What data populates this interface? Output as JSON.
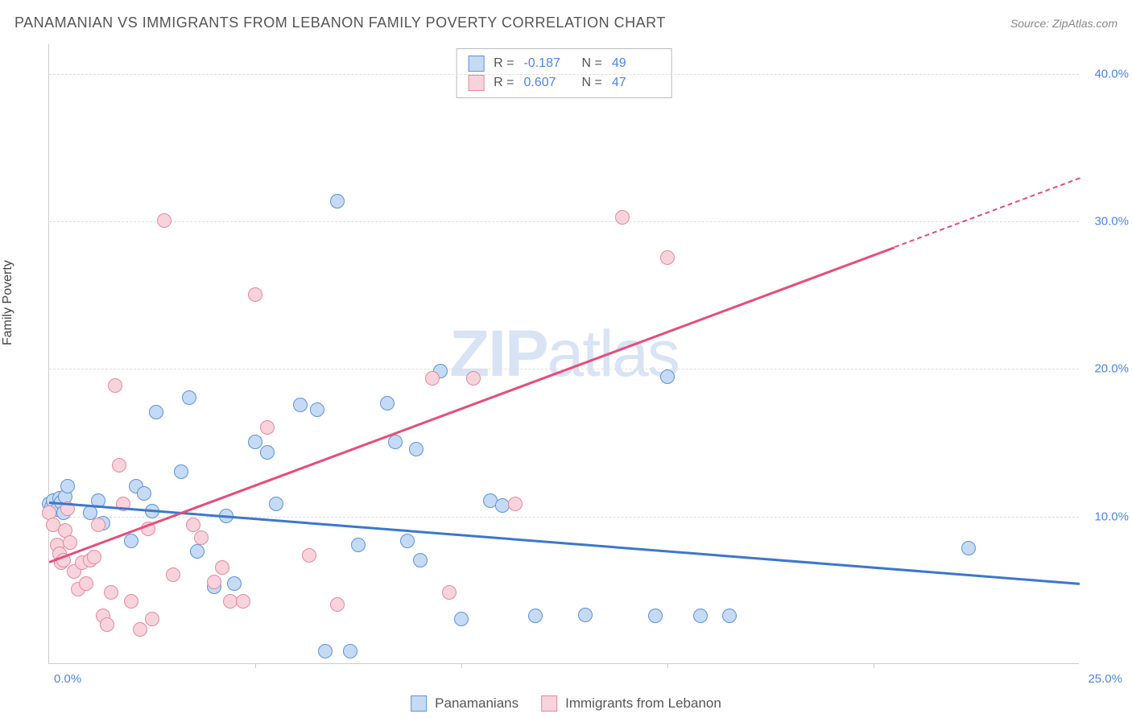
{
  "title": "PANAMANIAN VS IMMIGRANTS FROM LEBANON FAMILY POVERTY CORRELATION CHART",
  "source_prefix": "Source: ",
  "source": "ZipAtlas.com",
  "y_axis_label": "Family Poverty",
  "watermark_bold": "ZIP",
  "watermark_rest": "atlas",
  "chart": {
    "type": "scatter",
    "xlim": [
      0,
      25
    ],
    "ylim": [
      0,
      42
    ],
    "y_ticks": [
      10,
      20,
      30,
      40
    ],
    "y_tick_labels": [
      "10.0%",
      "20.0%",
      "30.0%",
      "40.0%"
    ],
    "x_ticks": [
      0,
      5,
      10,
      15,
      20,
      25
    ],
    "x_tick_label_left": "0.0%",
    "x_tick_label_right": "25.0%",
    "grid_color": "#dddddd",
    "axis_color": "#cccccc",
    "background_color": "#ffffff",
    "series": [
      {
        "name": "Panamanians",
        "fill": "#c5daf5",
        "stroke": "#5b94d6",
        "trend_color": "#3b78cc",
        "trend_x": [
          0,
          25
        ],
        "trend_y": [
          11.0,
          5.5
        ],
        "trend_dashed": false,
        "R": "-0.187",
        "N": "49",
        "points": [
          [
            0.0,
            10.8
          ],
          [
            0.05,
            10.6
          ],
          [
            0.1,
            11.0
          ],
          [
            0.2,
            10.4
          ],
          [
            0.25,
            11.2
          ],
          [
            0.3,
            10.9
          ],
          [
            0.35,
            10.2
          ],
          [
            0.4,
            11.3
          ],
          [
            0.45,
            12.0
          ],
          [
            1.0,
            10.2
          ],
          [
            1.2,
            11.0
          ],
          [
            1.3,
            9.5
          ],
          [
            2.0,
            8.3
          ],
          [
            2.1,
            12.0
          ],
          [
            2.3,
            11.5
          ],
          [
            2.5,
            10.3
          ],
          [
            2.6,
            17.0
          ],
          [
            3.2,
            13.0
          ],
          [
            3.4,
            18.0
          ],
          [
            3.6,
            7.6
          ],
          [
            4.0,
            5.2
          ],
          [
            4.3,
            10.0
          ],
          [
            4.5,
            5.4
          ],
          [
            5.0,
            15.0
          ],
          [
            5.3,
            14.3
          ],
          [
            5.5,
            10.8
          ],
          [
            6.1,
            17.5
          ],
          [
            6.5,
            17.2
          ],
          [
            6.7,
            0.8
          ],
          [
            7.0,
            31.3
          ],
          [
            7.3,
            0.8
          ],
          [
            7.5,
            8.0
          ],
          [
            8.2,
            17.6
          ],
          [
            8.4,
            15.0
          ],
          [
            8.7,
            8.3
          ],
          [
            8.9,
            14.5
          ],
          [
            9.0,
            7.0
          ],
          [
            9.5,
            19.8
          ],
          [
            10.0,
            3.0
          ],
          [
            10.7,
            11.0
          ],
          [
            11.0,
            10.7
          ],
          [
            11.8,
            3.2
          ],
          [
            13.0,
            3.3
          ],
          [
            14.7,
            3.2
          ],
          [
            15.8,
            3.2
          ],
          [
            16.5,
            3.2
          ],
          [
            15.0,
            19.4
          ],
          [
            22.3,
            7.8
          ]
        ]
      },
      {
        "name": "Immigrants from Lebanon",
        "fill": "#f8d3dc",
        "stroke": "#e887a1",
        "trend_color": "#e84c7a",
        "trend_x": [
          0,
          25
        ],
        "trend_y": [
          7.0,
          33.0
        ],
        "trend_dashed_after_x": 20.5,
        "R": "0.607",
        "N": "47",
        "points": [
          [
            0.0,
            10.2
          ],
          [
            0.1,
            9.4
          ],
          [
            0.2,
            8.0
          ],
          [
            0.25,
            7.4
          ],
          [
            0.3,
            6.8
          ],
          [
            0.35,
            7.0
          ],
          [
            0.4,
            9.0
          ],
          [
            0.45,
            10.5
          ],
          [
            0.5,
            8.2
          ],
          [
            0.6,
            6.2
          ],
          [
            0.7,
            5.0
          ],
          [
            0.8,
            6.8
          ],
          [
            0.9,
            5.4
          ],
          [
            1.0,
            7.0
          ],
          [
            1.1,
            7.2
          ],
          [
            1.2,
            9.4
          ],
          [
            1.3,
            3.2
          ],
          [
            1.4,
            2.6
          ],
          [
            1.5,
            4.8
          ],
          [
            1.6,
            18.8
          ],
          [
            1.7,
            13.4
          ],
          [
            1.8,
            10.8
          ],
          [
            2.0,
            4.2
          ],
          [
            2.2,
            2.3
          ],
          [
            2.4,
            9.1
          ],
          [
            2.5,
            3.0
          ],
          [
            2.8,
            30.0
          ],
          [
            3.0,
            6.0
          ],
          [
            3.5,
            9.4
          ],
          [
            3.7,
            8.5
          ],
          [
            4.0,
            5.5
          ],
          [
            4.2,
            6.5
          ],
          [
            4.4,
            4.2
          ],
          [
            4.7,
            4.2
          ],
          [
            5.0,
            25.0
          ],
          [
            5.3,
            16.0
          ],
          [
            6.3,
            7.3
          ],
          [
            7.0,
            4.0
          ],
          [
            9.3,
            19.3
          ],
          [
            9.7,
            4.8
          ],
          [
            10.3,
            19.3
          ],
          [
            11.3,
            10.8
          ],
          [
            13.9,
            30.2
          ],
          [
            15.0,
            27.5
          ]
        ]
      }
    ]
  },
  "stats_legend": {
    "R_label": "R =",
    "N_label": "N ="
  },
  "bottom_legend": {
    "items": [
      "Panamanians",
      "Immigrants from Lebanon"
    ]
  }
}
